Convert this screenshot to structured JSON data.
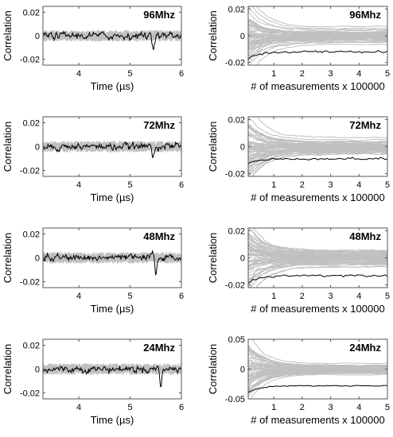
{
  "chart_data": [
    {
      "type": "line",
      "title": "96Mhz",
      "xlabel": "Time (µs)",
      "ylabel": "Correlation",
      "xlim": [
        3.3,
        6
      ],
      "ylim": [
        -0.025,
        0.025
      ],
      "xticks": [
        4,
        5,
        6
      ],
      "xtick_labels": [
        "4",
        "5",
        "6"
      ],
      "yticks": [
        -0.02,
        0,
        0.02
      ],
      "ytick_labels": [
        "-0.02",
        "0",
        "0.02"
      ],
      "colors": {
        "background": "#c0c0c0",
        "highlight": "#000000"
      }
    },
    {
      "type": "line",
      "title": "96Mhz",
      "xlabel": "# of measurements x 100000",
      "ylabel": "Correlation",
      "xlim": [
        0.1,
        5
      ],
      "ylim": [
        -0.022,
        0.022
      ],
      "xticks": [
        1,
        2,
        3,
        4,
        5
      ],
      "xtick_labels": [
        "1",
        "2",
        "3",
        "4",
        "5"
      ],
      "yticks": [
        -0.02,
        0,
        0.02
      ],
      "ytick_labels": [
        "-0.02",
        "0",
        "0.02"
      ],
      "colors": {
        "background": "#c0c0c0",
        "highlight": "#000000"
      }
    },
    {
      "type": "line",
      "title": "72Mhz",
      "xlabel": "Time (µs)",
      "ylabel": "Correlation",
      "xlim": [
        3.3,
        6
      ],
      "ylim": [
        -0.025,
        0.025
      ],
      "xticks": [
        4,
        5,
        6
      ],
      "xtick_labels": [
        "4",
        "5",
        "6"
      ],
      "yticks": [
        -0.02,
        0,
        0.02
      ],
      "ytick_labels": [
        "-0.02",
        "0",
        "0.02"
      ],
      "colors": {
        "background": "#c0c0c0",
        "highlight": "#000000"
      }
    },
    {
      "type": "line",
      "title": "72Mhz",
      "xlabel": "# of measurements x 100000",
      "ylabel": "Correlation",
      "xlim": [
        0.1,
        5
      ],
      "ylim": [
        -0.022,
        0.022
      ],
      "xticks": [
        1,
        2,
        3,
        4,
        5
      ],
      "xtick_labels": [
        "1",
        "2",
        "3",
        "4",
        "5"
      ],
      "yticks": [
        -0.02,
        0,
        0.02
      ],
      "ytick_labels": [
        "-0.02",
        "0",
        "0.02"
      ],
      "colors": {
        "background": "#c0c0c0",
        "highlight": "#000000"
      }
    },
    {
      "type": "line",
      "title": "48Mhz",
      "xlabel": "Time (µs)",
      "ylabel": "Correlation",
      "xlim": [
        3.3,
        6
      ],
      "ylim": [
        -0.025,
        0.025
      ],
      "xticks": [
        4,
        5,
        6
      ],
      "xtick_labels": [
        "4",
        "5",
        "6"
      ],
      "yticks": [
        -0.02,
        0,
        0.02
      ],
      "ytick_labels": [
        "-0.02",
        "0",
        "0.02"
      ],
      "colors": {
        "background": "#c0c0c0",
        "highlight": "#000000"
      }
    },
    {
      "type": "line",
      "title": "48Mhz",
      "xlabel": "# of measurements x 100000",
      "ylabel": "Correlation",
      "xlim": [
        0.1,
        5
      ],
      "ylim": [
        -0.022,
        0.022
      ],
      "xticks": [
        1,
        2,
        3,
        4,
        5
      ],
      "xtick_labels": [
        "1",
        "2",
        "3",
        "4",
        "5"
      ],
      "yticks": [
        -0.02,
        0,
        0.02
      ],
      "ytick_labels": [
        "-0.02",
        "0",
        "0.02"
      ],
      "colors": {
        "background": "#c0c0c0",
        "highlight": "#000000"
      }
    },
    {
      "type": "line",
      "title": "24Mhz",
      "xlabel": "Time (µs)",
      "ylabel": "Correlation",
      "xlim": [
        3.3,
        6
      ],
      "ylim": [
        -0.025,
        0.025
      ],
      "xticks": [
        4,
        5,
        6
      ],
      "xtick_labels": [
        "4",
        "5",
        "6"
      ],
      "yticks": [
        -0.02,
        0,
        0.02
      ],
      "ytick_labels": [
        "-0.02",
        "0",
        "0.02"
      ],
      "colors": {
        "background": "#c0c0c0",
        "highlight": "#000000"
      }
    },
    {
      "type": "line",
      "title": "24Mhz",
      "xlabel": "# of measurements x 100000",
      "ylabel": "Correlation",
      "xlim": [
        0.1,
        5
      ],
      "ylim": [
        -0.05,
        0.05
      ],
      "xticks": [
        1,
        2,
        3,
        4,
        5
      ],
      "xtick_labels": [
        "1",
        "2",
        "3",
        "4",
        "5"
      ],
      "yticks": [
        -0.05,
        0,
        0.05
      ],
      "ytick_labels": [
        "-0.05",
        "0",
        "0.05"
      ],
      "colors": {
        "background": "#c0c0c0",
        "highlight": "#000000"
      }
    }
  ]
}
